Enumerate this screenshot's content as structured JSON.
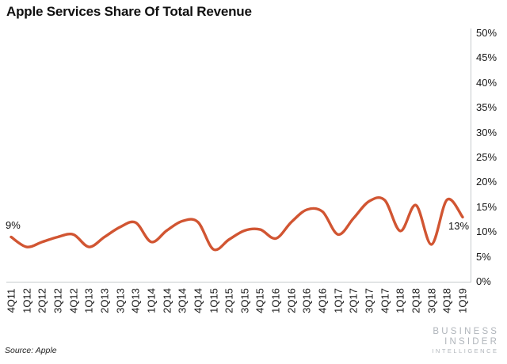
{
  "title": "Apple Services Share Of Total Revenue",
  "source": "Source: Apple",
  "annotations": {
    "start": "9%",
    "end": "13%"
  },
  "logo": {
    "line1": "BUSINESS",
    "line2": "INSIDER",
    "line3": "INTELLIGENCE"
  },
  "colors": {
    "line": "#d15532",
    "axis": "#c6cacd",
    "tick_text": "#161616",
    "logo_gray": "#b0b5bb"
  },
  "chart_data": {
    "type": "line",
    "title": "Apple Services Share Of Total Revenue",
    "categories": [
      "4Q11",
      "1Q12",
      "2Q12",
      "3Q12",
      "4Q12",
      "1Q13",
      "2Q13",
      "3Q13",
      "4Q13",
      "1Q14",
      "2Q14",
      "3Q14",
      "4Q14",
      "1Q15",
      "2Q15",
      "3Q15",
      "4Q15",
      "1Q16",
      "2Q16",
      "3Q16",
      "4Q16",
      "1Q17",
      "2Q17",
      "3Q17",
      "4Q17",
      "1Q18",
      "2Q18",
      "3Q18",
      "4Q18",
      "1Q19"
    ],
    "values": [
      9,
      7,
      8,
      9,
      9.5,
      7,
      9,
      11,
      11.9,
      8,
      10.3,
      12.2,
      12,
      6.5,
      8.5,
      10.3,
      10.5,
      8.7,
      12,
      14.5,
      14.1,
      9.5,
      12.8,
      16.2,
      16.4,
      10.2,
      15.4,
      7.5,
      16.5,
      13
    ],
    "unit": "%",
    "ylim": [
      0,
      50
    ],
    "y_tick_values": [
      0,
      5,
      10,
      15,
      20,
      25,
      30,
      35,
      40,
      45,
      50
    ],
    "y_tick_labels": [
      "0%",
      "5%",
      "10%",
      "15%",
      "20%",
      "25%",
      "30%",
      "35%",
      "40%",
      "45%",
      "50%"
    ],
    "y_axis_side": "right",
    "x_tick_rotation": -90,
    "grid": false,
    "legend": "none",
    "first_point_label": "9%",
    "last_point_label": "13%",
    "line_color": "#d15532",
    "smoothing": "spline"
  }
}
